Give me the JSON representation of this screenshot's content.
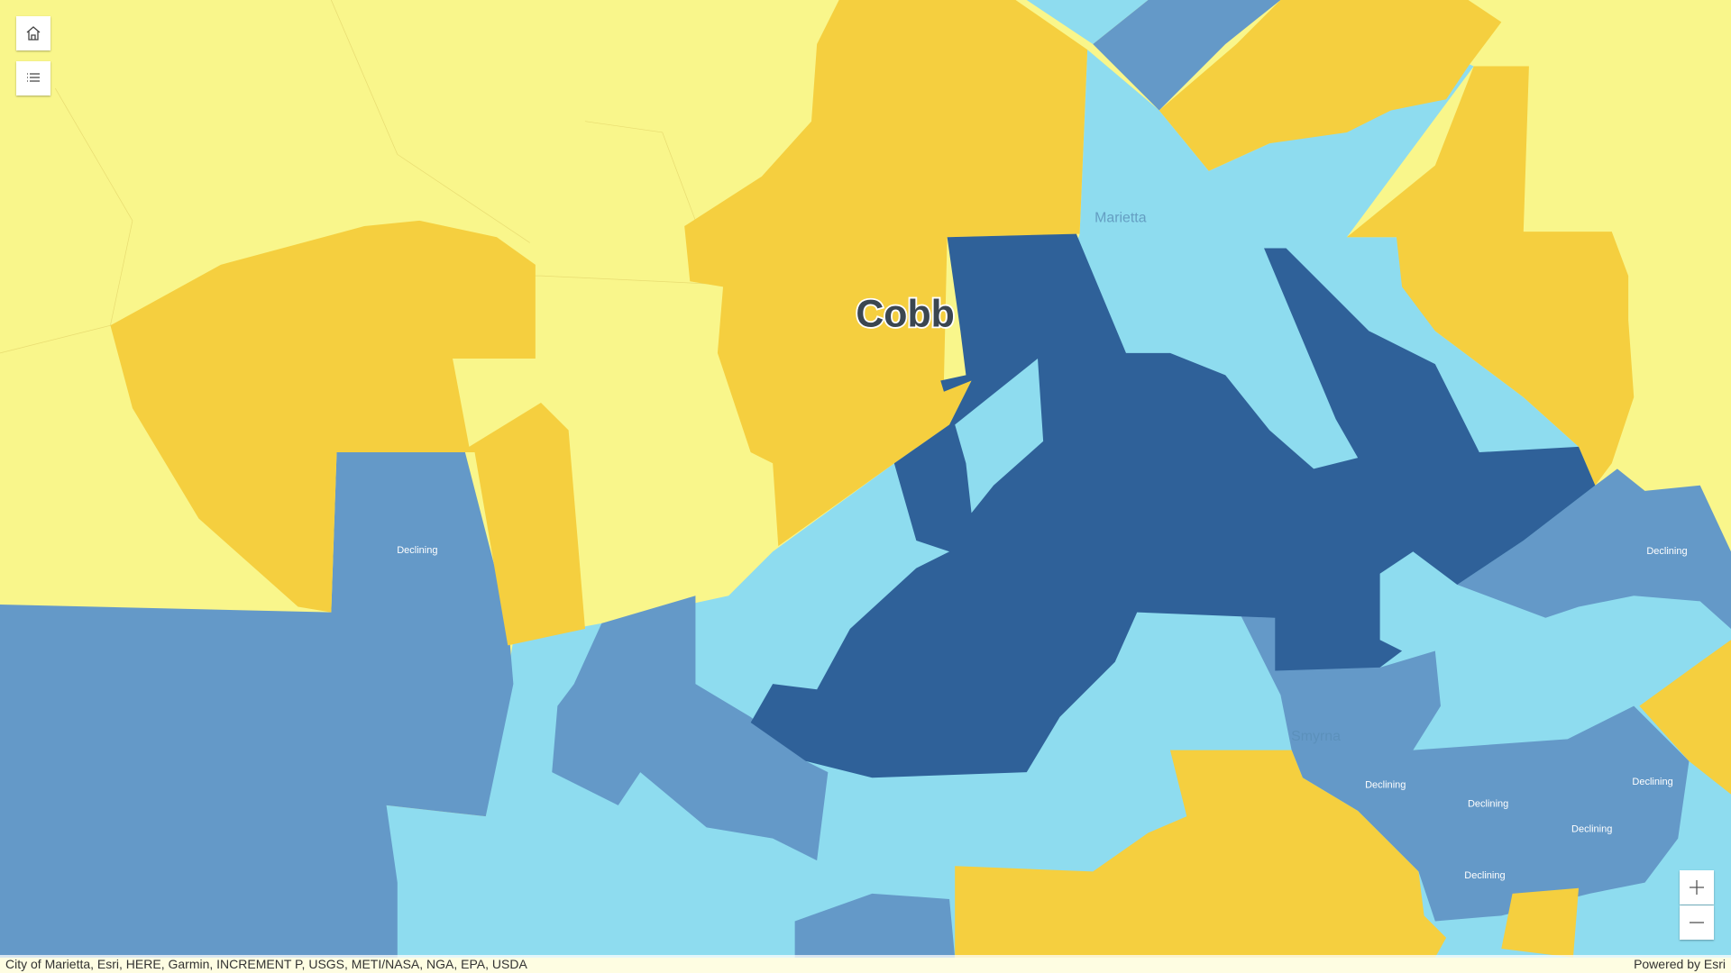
{
  "map": {
    "county_label": "Cobb",
    "labels": [
      "Declining",
      "Declining",
      "Declining",
      "Declining",
      "Declining",
      "Declining",
      "Declining"
    ],
    "places": [
      "Marietta",
      "Smyrna"
    ],
    "attribution": "City of Marietta, Esri, HERE, Garmin, INCREMENT P, USGS, METI/NASA, NGA, EPA, USDA",
    "powered_by": "Powered by Esri"
  }
}
